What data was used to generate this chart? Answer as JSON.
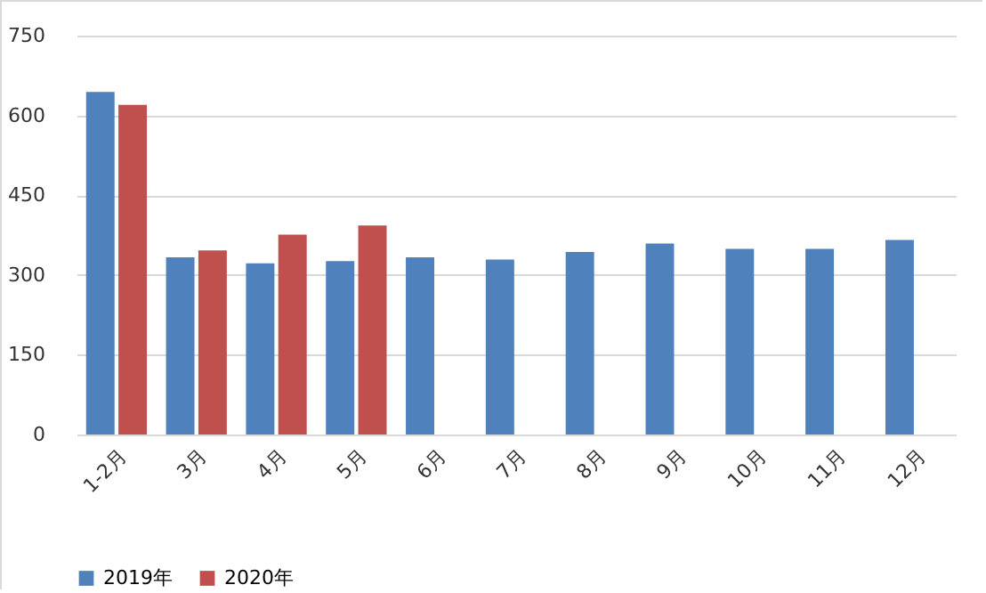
{
  "chart_data": {
    "type": "bar",
    "categories": [
      "1-2月",
      "3月",
      "4月",
      "5月",
      "6月",
      "7月",
      "8月",
      "9月",
      "10月",
      "11月",
      "12月"
    ],
    "series": [
      {
        "name": "2019年",
        "color": "#4f81bd",
        "values": [
          644,
          333,
          322,
          326,
          333,
          329,
          343,
          359,
          349,
          349,
          366
        ]
      },
      {
        "name": "2020年",
        "color": "#c0504d",
        "values": [
          620,
          346,
          376,
          393,
          null,
          null,
          null,
          null,
          null,
          null,
          null
        ]
      }
    ],
    "ylim": [
      0,
      750
    ],
    "yticks": [
      0,
      150,
      300,
      450,
      600,
      750
    ],
    "grid": "y",
    "legend": "bottom"
  }
}
